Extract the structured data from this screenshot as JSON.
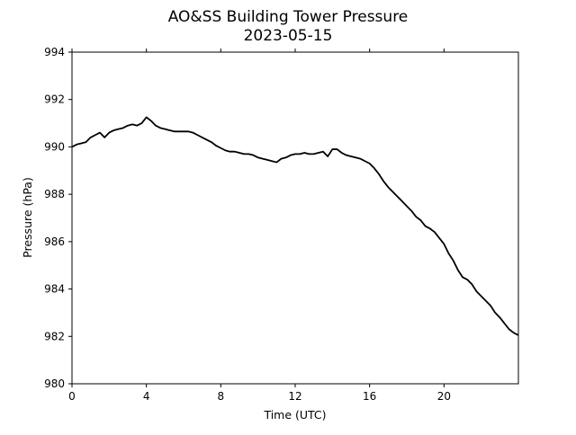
{
  "chart_data": {
    "type": "line",
    "title": "AO&SS Building Tower Pressure",
    "subtitle": "2023-05-15",
    "xlabel": "Time (UTC)",
    "ylabel": "Pressure (hPa)",
    "xlim": [
      0,
      24
    ],
    "ylim": [
      980,
      994
    ],
    "x_ticks": [
      0,
      4,
      8,
      12,
      16,
      20
    ],
    "y_ticks": [
      980,
      982,
      984,
      986,
      988,
      990,
      992,
      994
    ],
    "grid": false,
    "line_color": "#000000",
    "series": [
      {
        "x": [
          0,
          0.25,
          0.5,
          0.75,
          1,
          1.25,
          1.5,
          1.75,
          2,
          2.25,
          2.5,
          2.75,
          3,
          3.25,
          3.5,
          3.75,
          4,
          4.25,
          4.5,
          4.75,
          5,
          5.25,
          5.5,
          5.75,
          6,
          6.25,
          6.5,
          6.75,
          7,
          7.25,
          7.5,
          7.75,
          8,
          8.25,
          8.5,
          8.75,
          9,
          9.25,
          9.5,
          9.75,
          10,
          10.25,
          10.5,
          10.75,
          11,
          11.25,
          11.5,
          11.75,
          12,
          12.25,
          12.5,
          12.75,
          13,
          13.25,
          13.5,
          13.75,
          14,
          14.25,
          14.5,
          14.75,
          15,
          15.25,
          15.5,
          15.75,
          16,
          16.25,
          16.5,
          16.75,
          17,
          17.25,
          17.5,
          17.75,
          18,
          18.25,
          18.5,
          18.75,
          19,
          19.25,
          19.5,
          19.75,
          20,
          20.25,
          20.5,
          20.75,
          21,
          21.25,
          21.5,
          21.75,
          22,
          22.25,
          22.5,
          22.75,
          23,
          23.25,
          23.5,
          23.75,
          24
        ],
        "y": [
          990.0,
          990.1,
          990.15,
          990.2,
          990.4,
          990.5,
          990.6,
          990.4,
          990.6,
          990.7,
          990.75,
          990.8,
          990.9,
          990.95,
          990.9,
          991.0,
          991.25,
          991.1,
          990.9,
          990.8,
          990.75,
          990.7,
          990.65,
          990.65,
          990.65,
          990.65,
          990.6,
          990.5,
          990.4,
          990.3,
          990.2,
          990.05,
          989.95,
          989.85,
          989.8,
          989.8,
          989.75,
          989.7,
          989.7,
          989.65,
          989.55,
          989.5,
          989.45,
          989.4,
          989.35,
          989.5,
          989.55,
          989.65,
          989.7,
          989.7,
          989.75,
          989.7,
          989.7,
          989.75,
          989.8,
          989.6,
          989.9,
          989.9,
          989.75,
          989.65,
          989.6,
          989.55,
          989.5,
          989.4,
          989.3,
          989.1,
          988.85,
          988.55,
          988.3,
          988.1,
          987.9,
          987.7,
          987.5,
          987.3,
          987.05,
          986.9,
          986.65,
          986.55,
          986.4,
          986.15,
          985.9,
          985.5,
          985.2,
          984.8,
          984.5,
          984.4,
          984.2,
          983.9,
          983.7,
          983.5,
          983.3,
          983.0,
          982.8,
          982.55,
          982.3,
          982.15,
          982.05
        ]
      }
    ]
  }
}
